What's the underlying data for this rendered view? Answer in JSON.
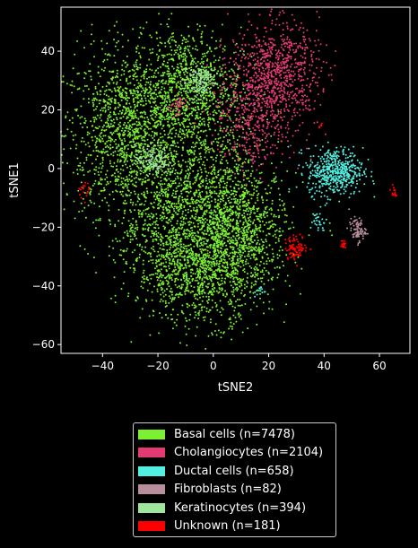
{
  "chart_data": {
    "type": "scatter",
    "xlabel": "tSNE2",
    "ylabel": "tSNE1",
    "xlim": [
      -55,
      71
    ],
    "ylim": [
      -63,
      55
    ],
    "xticks": [
      -40,
      -20,
      0,
      20,
      40,
      60
    ],
    "yticks": [
      -60,
      -40,
      -20,
      0,
      20,
      40
    ],
    "grid": false,
    "legend_placement": "below",
    "series": [
      {
        "name": "Basal cells (n=7478)",
        "color": "#7cf032",
        "count": 7478
      },
      {
        "name": "Cholangiocytes (n=2104)",
        "color": "#e33a74",
        "count": 2104
      },
      {
        "name": "Ductal cells (n=658)",
        "color": "#52f0e2",
        "count": 658
      },
      {
        "name": "Fibroblasts (n=82)",
        "color": "#b88e9c",
        "count": 82
      },
      {
        "name": "Keratinocytes (n=394)",
        "color": "#9ee59e",
        "count": 394
      },
      {
        "name": "Unknown (n=181)",
        "color": "#ff0000",
        "count": 181
      }
    ],
    "clusters": [
      {
        "series": 0,
        "cx": -30,
        "cy": 12,
        "sx": 12,
        "sy": 14,
        "n": 1400
      },
      {
        "series": 0,
        "cx": -10,
        "cy": 28,
        "sx": 10,
        "sy": 10,
        "n": 900
      },
      {
        "series": 0,
        "cx": 0,
        "cy": -10,
        "sx": 10,
        "sy": 14,
        "n": 1000
      },
      {
        "series": 0,
        "cx": -5,
        "cy": -35,
        "sx": 11,
        "sy": 9,
        "n": 1000
      },
      {
        "series": 0,
        "cx": 10,
        "cy": -22,
        "sx": 9,
        "sy": 10,
        "n": 700
      },
      {
        "series": 0,
        "cx": -20,
        "cy": -15,
        "sx": 9,
        "sy": 12,
        "n": 500
      },
      {
        "series": 1,
        "cx": 22,
        "cy": 32,
        "sx": 8,
        "sy": 9,
        "n": 900
      },
      {
        "series": 1,
        "cx": 14,
        "cy": 14,
        "sx": 7,
        "sy": 8,
        "n": 300
      },
      {
        "series": 1,
        "cx": -13,
        "cy": 21,
        "sx": 1.5,
        "sy": 2,
        "n": 40
      },
      {
        "series": 2,
        "cx": 44,
        "cy": -1,
        "sx": 5,
        "sy": 4,
        "n": 500
      },
      {
        "series": 2,
        "cx": 38,
        "cy": -18,
        "sx": 1.5,
        "sy": 2,
        "n": 30
      },
      {
        "series": 2,
        "cx": 17,
        "cy": -42,
        "sx": 1,
        "sy": 1,
        "n": 12
      },
      {
        "series": 3,
        "cx": 52,
        "cy": -21,
        "sx": 1.5,
        "sy": 2,
        "n": 80
      },
      {
        "series": 4,
        "cx": -5,
        "cy": 30,
        "sx": 3,
        "sy": 3,
        "n": 150
      },
      {
        "series": 4,
        "cx": -22,
        "cy": 3,
        "sx": 3,
        "sy": 2.5,
        "n": 140
      },
      {
        "series": 5,
        "cx": 30,
        "cy": -27,
        "sx": 2,
        "sy": 2,
        "n": 90
      },
      {
        "series": 5,
        "cx": 47,
        "cy": -26,
        "sx": 0.5,
        "sy": 1,
        "n": 20
      },
      {
        "series": 5,
        "cx": -47,
        "cy": -7,
        "sx": 1,
        "sy": 1.5,
        "n": 20
      },
      {
        "series": 5,
        "cx": 65,
        "cy": -8,
        "sx": 0.5,
        "sy": 1,
        "n": 15
      },
      {
        "series": 5,
        "cx": 39,
        "cy": 15,
        "sx": 0.5,
        "sy": 0.5,
        "n": 6
      }
    ]
  }
}
